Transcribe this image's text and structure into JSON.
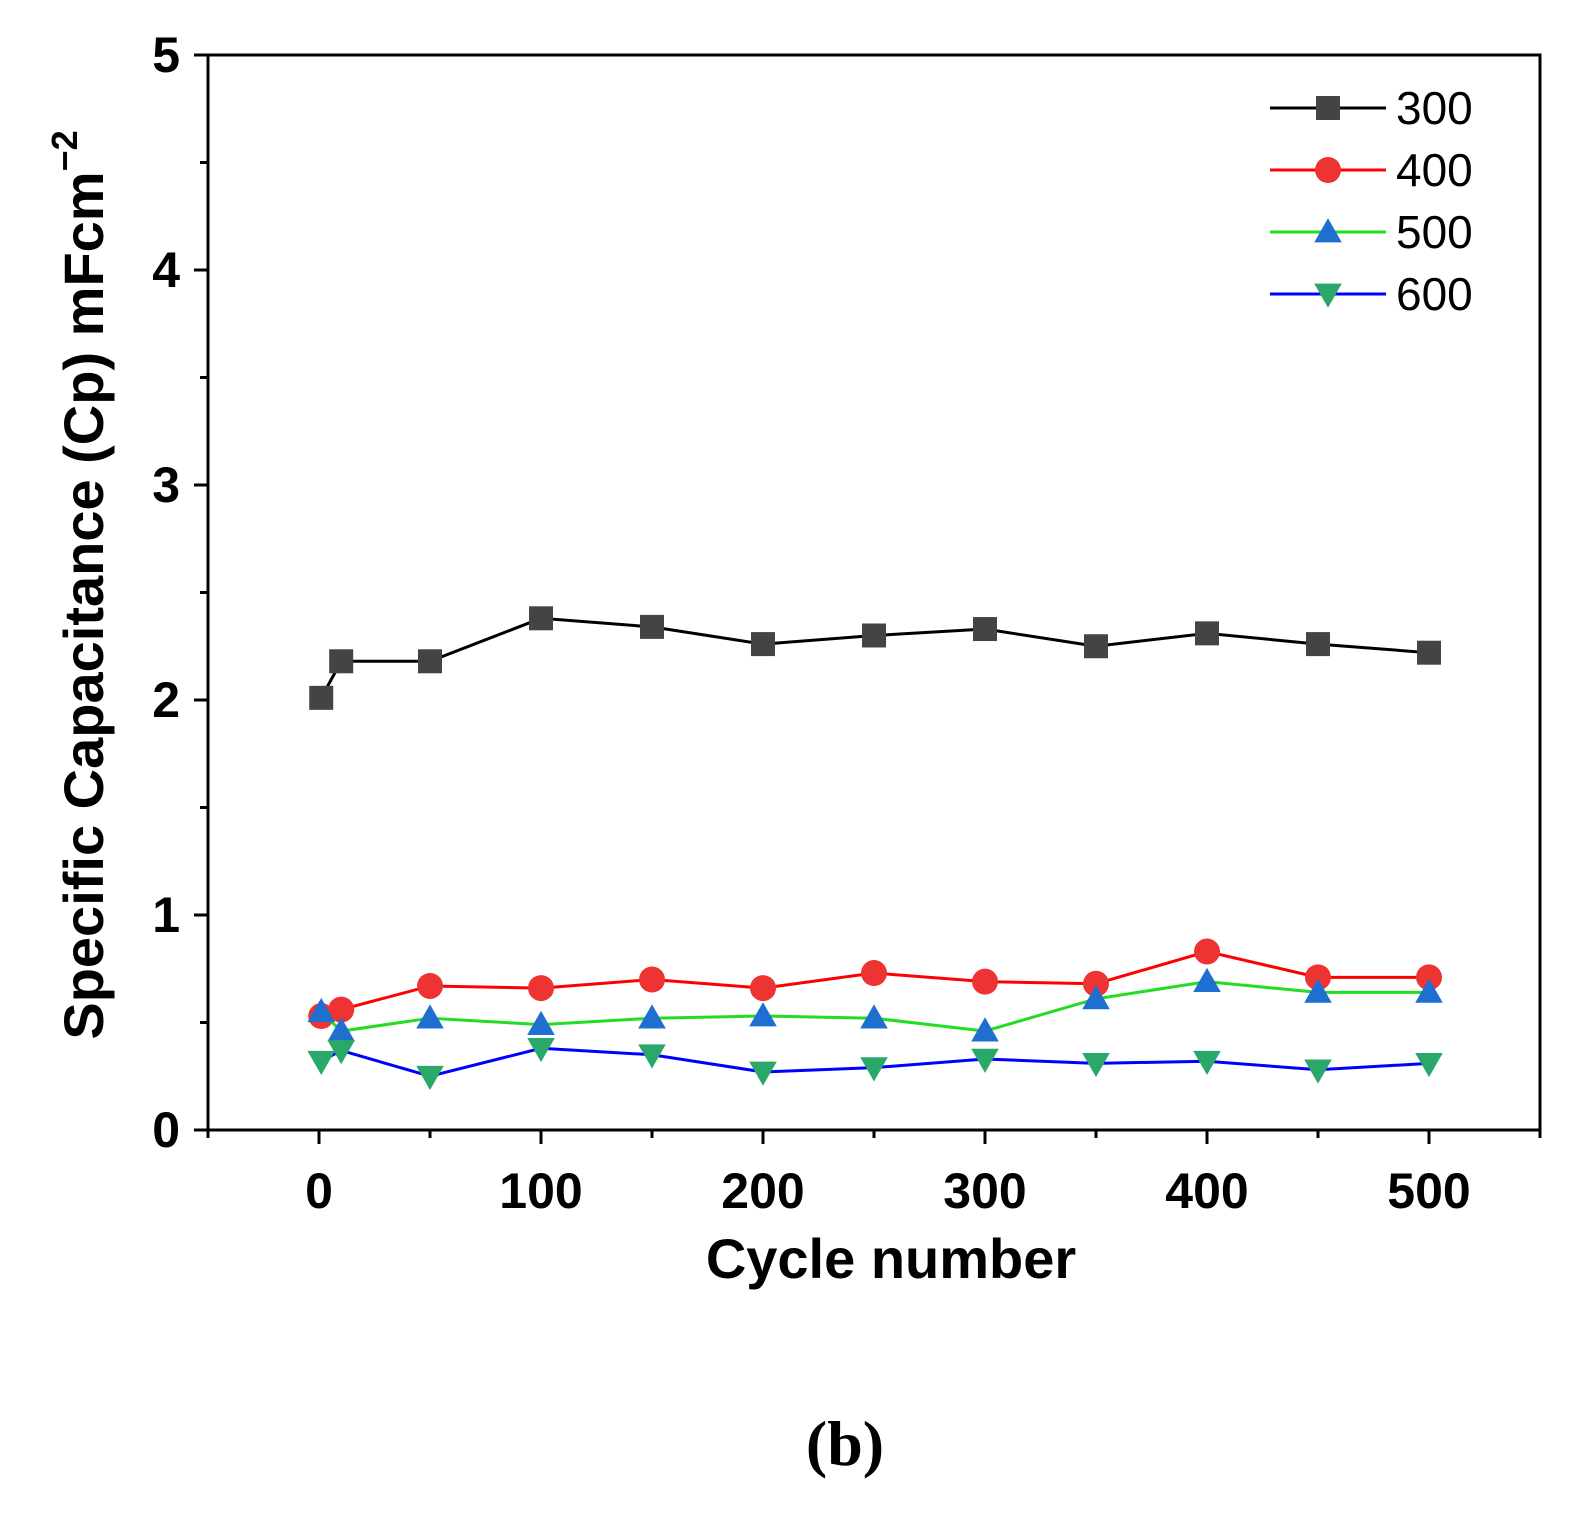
{
  "chart_data": {
    "type": "line",
    "xlabel": "Cycle number",
    "ylabel": "Specific Capacitance (Cp) mFcm",
    "ylabel_superscript": "−2",
    "panel_label": "(b)",
    "xlim": [
      -50,
      550
    ],
    "ylim": [
      0,
      5
    ],
    "x_ticks": [
      0,
      100,
      200,
      300,
      400,
      500
    ],
    "x_tick_labels": [
      "0",
      "100",
      "200",
      "300",
      "400",
      "500"
    ],
    "y_ticks": [
      0,
      1,
      2,
      3,
      4,
      5
    ],
    "y_tick_labels": [
      "0",
      "1",
      "2",
      "3",
      "4",
      "5"
    ],
    "x": [
      1,
      10,
      50,
      100,
      150,
      200,
      250,
      300,
      350,
      400,
      450,
      500
    ],
    "legend_position": "top-right",
    "series": [
      {
        "name": "300",
        "line_color": "#000000",
        "marker": "square",
        "marker_color": "#444444",
        "values": [
          2.01,
          2.18,
          2.18,
          2.38,
          2.34,
          2.26,
          2.3,
          2.33,
          2.25,
          2.31,
          2.26,
          2.22
        ]
      },
      {
        "name": "400",
        "line_color": "#ff0000",
        "marker": "circle",
        "marker_color": "#ee3333",
        "values": [
          0.53,
          0.56,
          0.67,
          0.66,
          0.7,
          0.66,
          0.73,
          0.69,
          0.68,
          0.83,
          0.71,
          0.71
        ]
      },
      {
        "name": "500",
        "line_color": "#22dd22",
        "marker": "triangle-up",
        "marker_color": "#1f6fd0",
        "values": [
          0.55,
          0.46,
          0.52,
          0.49,
          0.52,
          0.53,
          0.52,
          0.46,
          0.61,
          0.69,
          0.64,
          0.64
        ]
      },
      {
        "name": "600",
        "line_color": "#0000ff",
        "marker": "triangle-down",
        "marker_color": "#2aa86a",
        "values": [
          0.32,
          0.37,
          0.25,
          0.38,
          0.35,
          0.27,
          0.29,
          0.33,
          0.31,
          0.32,
          0.28,
          0.31
        ]
      }
    ]
  }
}
